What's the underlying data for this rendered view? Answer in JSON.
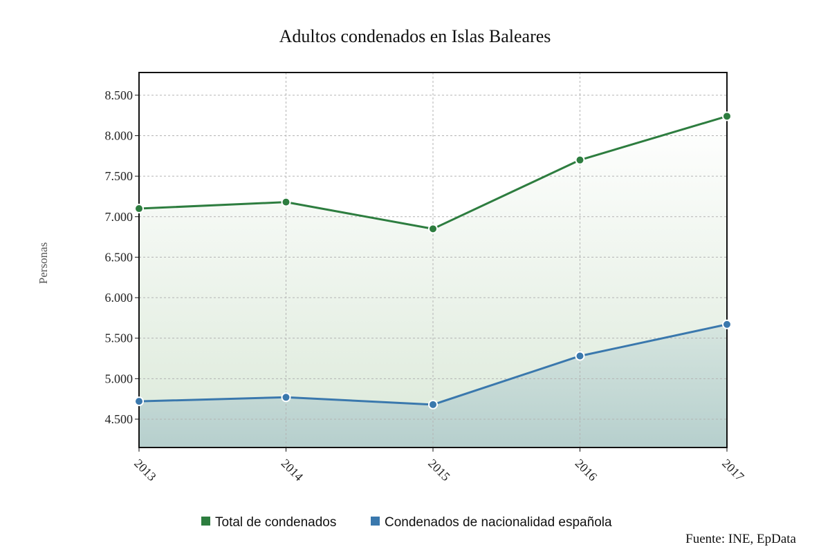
{
  "chart_data": {
    "type": "area",
    "title": "Adultos condenados en Islas Baleares",
    "ylabel": "Personas",
    "xlabel": "",
    "x": [
      "2013",
      "2014",
      "2015",
      "2016",
      "2017"
    ],
    "ylim": [
      4150,
      8780
    ],
    "yticks": [
      4500,
      5000,
      5500,
      6000,
      6500,
      7000,
      7500,
      8000,
      8500
    ],
    "ytick_labels": [
      "4.500",
      "5.000",
      "5.500",
      "6.000",
      "6.500",
      "7.000",
      "7.500",
      "8.000",
      "8.500"
    ],
    "grid": true,
    "legend_position": "bottom",
    "series": [
      {
        "name": "Total de condenados",
        "color": "#2d7d3f",
        "values": [
          7100,
          7180,
          6850,
          7700,
          8240
        ]
      },
      {
        "name": "Condenados de nacionalidad española",
        "color": "#3a78ad",
        "values": [
          4720,
          4770,
          4680,
          5280,
          5670
        ]
      }
    ],
    "source": "Fuente: INE, EpData"
  }
}
